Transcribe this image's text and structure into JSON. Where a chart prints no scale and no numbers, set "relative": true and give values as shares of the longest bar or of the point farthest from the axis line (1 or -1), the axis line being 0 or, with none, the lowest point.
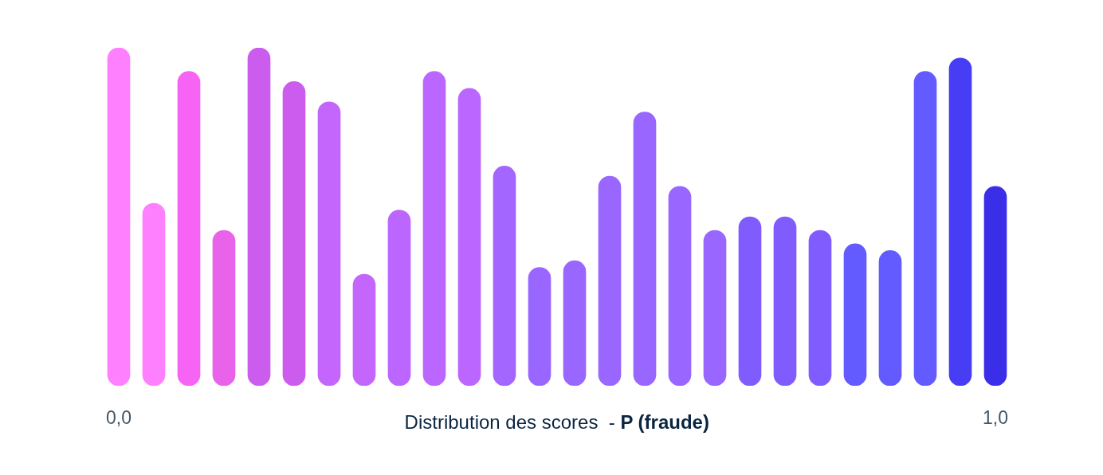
{
  "chart_data": {
    "type": "bar",
    "xlabel": "Distribution des scores  - P (fraude)",
    "categories": [
      "0,0",
      null,
      null,
      null,
      null,
      null,
      null,
      null,
      null,
      null,
      null,
      null,
      null,
      null,
      null,
      null,
      null,
      null,
      null,
      null,
      null,
      null,
      null,
      null,
      null,
      "1,0"
    ],
    "values": [
      1,
      0.54,
      0.93,
      0.46,
      1,
      0.9,
      0.84,
      0.33,
      0.52,
      0.93,
      0.88,
      0.65,
      0.35,
      0.37,
      0.62,
      0.81,
      0.59,
      0.46,
      0.5,
      0.5,
      0.46,
      0.42,
      0.4,
      0.93,
      0.97,
      0.59
    ],
    "colors": [
      "#ff80ff",
      "#ff80ff",
      "#f763f5",
      "#e862ea",
      "#cc5ced",
      "#cc5ced",
      "#c466fc",
      "#c466fc",
      "#bb66ff",
      "#bb66ff",
      "#bb66ff",
      "#a366ff",
      "#9966ff",
      "#9966ff",
      "#9966ff",
      "#9966ff",
      "#9966ff",
      "#9966ff",
      "#805cff",
      "#805cff",
      "#805cff",
      "#635bff",
      "#635bff",
      "#635bff",
      "#473df5",
      "#3b2ee8"
    ],
    "relative": true
  }
}
